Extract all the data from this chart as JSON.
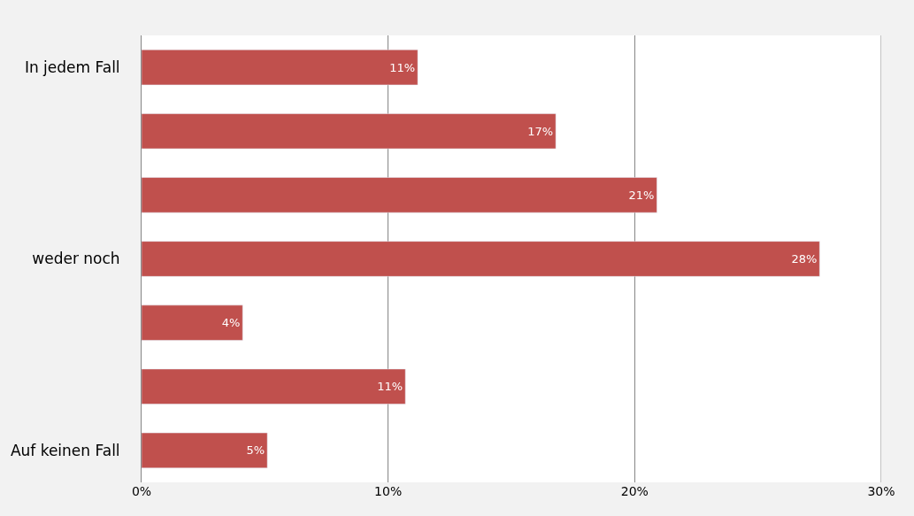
{
  "chart_data": {
    "type": "bar",
    "orientation": "horizontal",
    "categories": [
      "In jedem Fall",
      null,
      null,
      "weder noch",
      null,
      null,
      "Auf keinen Fall"
    ],
    "values": [
      11.2,
      16.8,
      20.9,
      27.5,
      4.1,
      10.7,
      5.1
    ],
    "value_labels": [
      "11%",
      "17%",
      "21%",
      "28%",
      "4%",
      "11%",
      "5%"
    ],
    "color": "#c0504d",
    "xlim": [
      0,
      30
    ],
    "xticks": [
      {
        "value": 0,
        "label": "0%"
      },
      {
        "value": 10,
        "label": "10%"
      },
      {
        "value": 20,
        "label": "20%"
      },
      {
        "value": 30,
        "label": "30%"
      }
    ],
    "grid": "x",
    "legend": false
  }
}
